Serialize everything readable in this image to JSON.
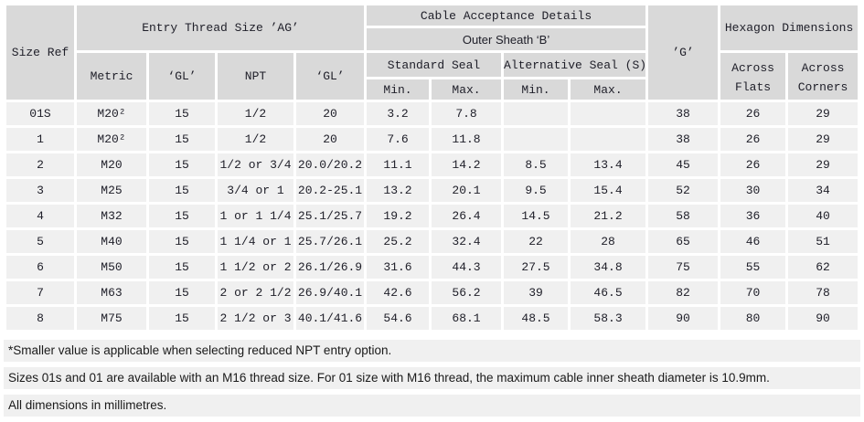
{
  "colors": {
    "header_bg": "#d9d9d9",
    "cell_bg": "#f0f0f0",
    "table_text": "#20202a",
    "footnote_text": "#1a1a1a",
    "grid_gap": "#ffffff"
  },
  "table": {
    "header": {
      "size_ref": "Size Ref",
      "entry_thread": "Entry Thread Size ’AG’",
      "metric": "Metric",
      "gl1": "‘GL’",
      "npt": "NPT",
      "gl2": "‘GL’",
      "cable_acceptance": "Cable Acceptance Details",
      "outer_sheath": "Outer Sheath ‘B’",
      "standard_seal": "Standard Seal",
      "alternative_seal": "Alternative Seal (S)",
      "std_min": "Min.",
      "std_max": "Max.",
      "alt_min": "Min.",
      "alt_max": "Max.",
      "g": "’G’",
      "hexagon": "Hexagon Dimensions",
      "across_flats_line1": "Across",
      "across_flats_line2": "Flats",
      "across_corners_line1": "Across",
      "across_corners_line2": "Corners"
    },
    "rows": [
      [
        "01S",
        "M20²",
        "15",
        "1/2",
        "20",
        "3.2",
        "7.8",
        "",
        "",
        "38",
        "26",
        "29"
      ],
      [
        "1",
        "M20²",
        "15",
        "1/2",
        "20",
        "7.6",
        "11.8",
        "",
        "",
        "38",
        "26",
        "29"
      ],
      [
        "2",
        "M20",
        "15",
        "1/2 or 3/4",
        "20.0/20.2",
        "11.1",
        "14.2",
        "8.5",
        "13.4",
        "45",
        "26",
        "29"
      ],
      [
        "3",
        "M25",
        "15",
        "3/4 or 1",
        "20.2-25.1",
        "13.2",
        "20.1",
        "9.5",
        "15.4",
        "52",
        "30",
        "34"
      ],
      [
        "4",
        "M32",
        "15",
        "1 or 1 1/4",
        "25.1/25.7",
        "19.2",
        "26.4",
        "14.5",
        "21.2",
        "58",
        "36",
        "40"
      ],
      [
        "5",
        "M40",
        "15",
        "1 1/4 or 1",
        "25.7/26.1",
        "25.2",
        "32.4",
        "22",
        "28",
        "65",
        "46",
        "51"
      ],
      [
        "6",
        "M50",
        "15",
        "1 1/2 or 2",
        "26.1/26.9",
        "31.6",
        "44.3",
        "27.5",
        "34.8",
        "75",
        "55",
        "62"
      ],
      [
        "7",
        "M63",
        "15",
        "2 or 2 1/2",
        "26.9/40.1",
        "42.6",
        "56.2",
        "39",
        "46.5",
        "82",
        "70",
        "78"
      ],
      [
        "8",
        "M75",
        "15",
        "2 1/2 or 3",
        "40.1/41.6",
        "54.6",
        "68.1",
        "48.5",
        "58.3",
        "90",
        "80",
        "90"
      ]
    ]
  },
  "footnotes": [
    "*Smaller value is applicable when selecting reduced NPT entry option.",
    "Sizes 01s and 01 are available with an M16 thread size. For 01 size with M16 thread, the maximum cable inner sheath diameter is 10.9mm.",
    "All dimensions in millimetres."
  ]
}
